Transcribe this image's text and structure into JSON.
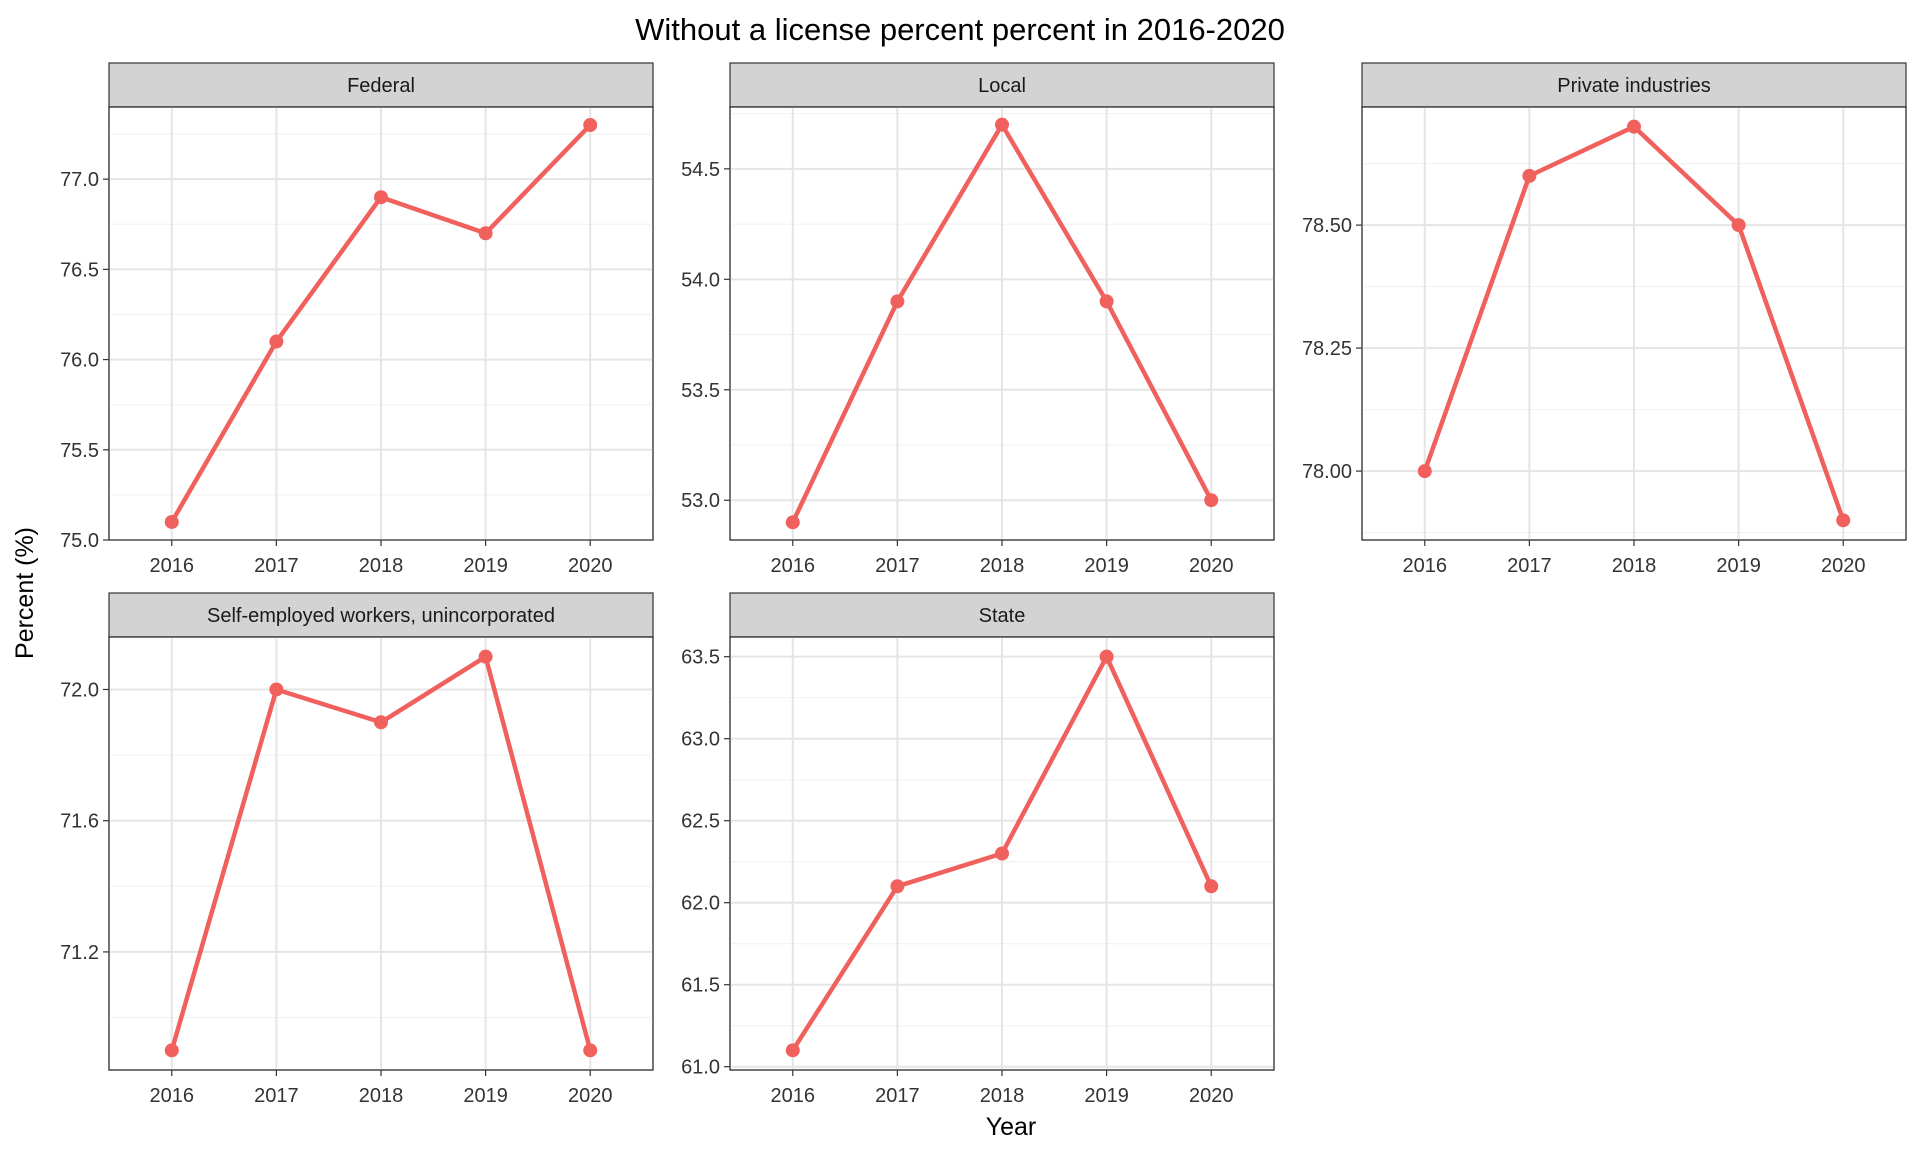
{
  "colors": {
    "series": "#F0615E",
    "strip": "#D3D3D3",
    "grid": "#E5E5E5"
  },
  "chart_data": {
    "type": "line",
    "title": "Without a license percent percent in 2016-2020",
    "xlabel": "Year",
    "ylabel": "Percent (%)",
    "grid": true,
    "legend": "none",
    "x": [
      2016,
      2017,
      2018,
      2019,
      2020
    ],
    "x_tick_labels": [
      "2016",
      "2017",
      "2018",
      "2019",
      "2020"
    ],
    "facets": [
      {
        "name": "Federal",
        "values": [
          75.1,
          76.1,
          76.9,
          76.7,
          77.3
        ],
        "ylim": [
          75.0,
          77.4
        ],
        "yticks": [
          75.0,
          75.5,
          76.0,
          76.5,
          77.0
        ],
        "ytick_labels": [
          "75.0",
          "75.5",
          "76.0",
          "76.5",
          "77.0"
        ]
      },
      {
        "name": "Local",
        "values": [
          52.9,
          53.9,
          54.7,
          53.9,
          53.0
        ],
        "ylim": [
          52.82,
          54.78
        ],
        "yticks": [
          53.0,
          53.5,
          54.0,
          54.5
        ],
        "ytick_labels": [
          "53.0",
          "53.5",
          "54.0",
          "54.5"
        ]
      },
      {
        "name": "Private industries",
        "values": [
          78.0,
          78.6,
          78.7,
          78.5,
          77.9
        ],
        "ylim": [
          77.86,
          78.74
        ],
        "yticks": [
          78.0,
          78.25,
          78.5
        ],
        "ytick_labels": [
          "78.00",
          "78.25",
          "78.50"
        ]
      },
      {
        "name": "Self-employed workers, unincorporated",
        "values": [
          70.9,
          72.0,
          71.9,
          72.1,
          70.9
        ],
        "ylim": [
          70.84,
          72.16
        ],
        "yticks": [
          71.2,
          71.6,
          72.0
        ],
        "ytick_labels": [
          "71.2",
          "71.6",
          "72.0"
        ]
      },
      {
        "name": "State",
        "values": [
          61.1,
          62.1,
          62.3,
          63.5,
          62.1
        ],
        "ylim": [
          60.98,
          63.62
        ],
        "yticks": [
          61.0,
          61.5,
          62.0,
          62.5,
          63.0,
          63.5
        ],
        "ytick_labels": [
          "61.0",
          "61.5",
          "62.0",
          "62.5",
          "63.0",
          "63.5"
        ]
      }
    ]
  }
}
